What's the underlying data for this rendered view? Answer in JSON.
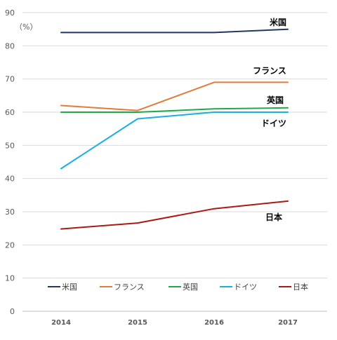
{
  "chart_data": {
    "type": "line",
    "unit_label": "（%）",
    "x": [
      "2014",
      "2015",
      "2016",
      "2017"
    ],
    "ylim": [
      0,
      90
    ],
    "yticks": [
      0,
      10,
      20,
      30,
      40,
      50,
      60,
      70,
      80,
      90
    ],
    "grid": true,
    "legend_position": "bottom",
    "series": [
      {
        "name": "米国",
        "color": "#203864",
        "values": [
          84,
          84,
          84,
          85
        ]
      },
      {
        "name": "フランス",
        "color": "#E07B39",
        "values": [
          62,
          60.5,
          69,
          69
        ]
      },
      {
        "name": "英国",
        "color": "#22A845",
        "values": [
          60,
          60,
          61,
          61.3
        ]
      },
      {
        "name": "ドイツ",
        "color": "#1BAEE3",
        "values": [
          43,
          58,
          60,
          60
        ]
      },
      {
        "name": "日本",
        "color": "#AA1A13",
        "values": [
          24.8,
          26.6,
          30.9,
          33.2
        ]
      }
    ]
  }
}
